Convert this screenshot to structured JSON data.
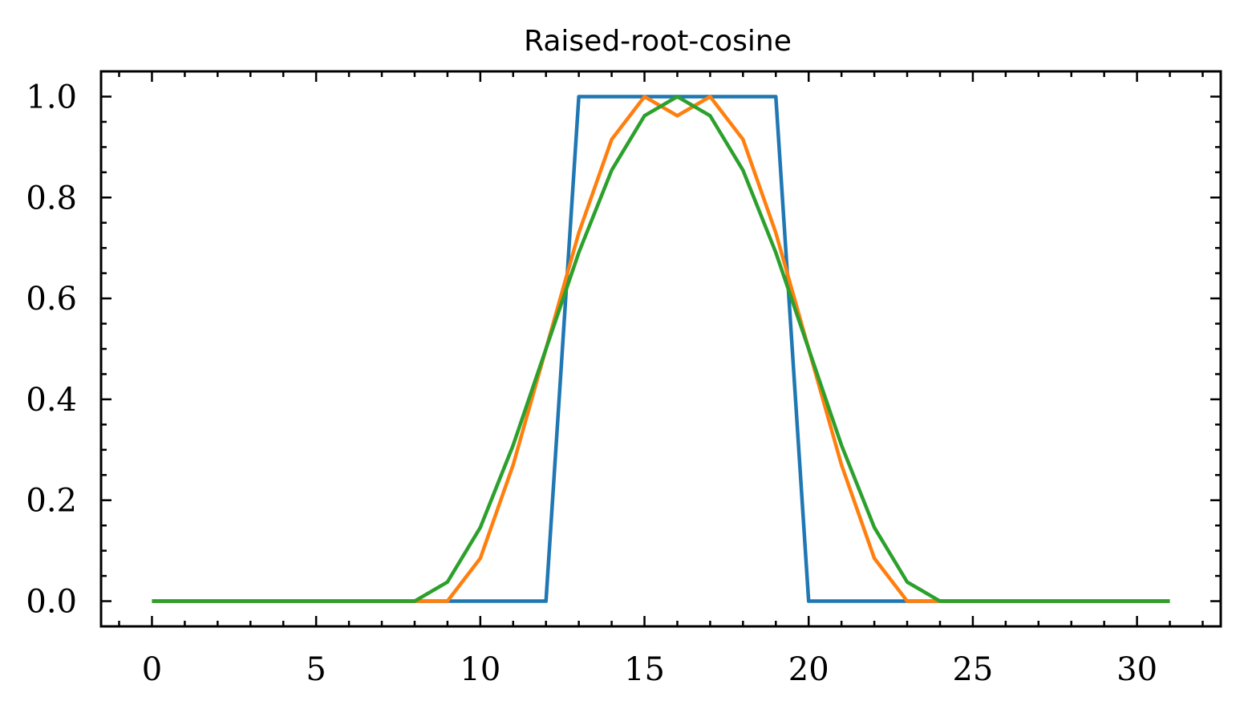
{
  "chart_data": {
    "type": "line",
    "title": "Raised-root-cosine",
    "xlabel": "",
    "ylabel": "",
    "xlim": [
      -1.55,
      32.55
    ],
    "ylim": [
      -0.05,
      1.05
    ],
    "xticks": [
      0,
      5,
      10,
      15,
      20,
      25,
      30
    ],
    "xtick_labels": [
      "0",
      "5",
      "10",
      "15",
      "20",
      "25",
      "30"
    ],
    "xminor_step": 1,
    "yticks": [
      0.0,
      0.2,
      0.4,
      0.6,
      0.8,
      1.0
    ],
    "ytick_labels": [
      "0.0",
      "0.2",
      "0.4",
      "0.6",
      "0.8",
      "1.0"
    ],
    "yminor_step": 0.05,
    "grid": false,
    "legend": "none",
    "x": [
      0,
      1,
      2,
      3,
      4,
      5,
      6,
      7,
      8,
      9,
      10,
      11,
      12,
      13,
      14,
      15,
      16,
      17,
      18,
      19,
      20,
      21,
      22,
      23,
      24,
      25,
      26,
      27,
      28,
      29,
      30,
      31
    ],
    "series": [
      {
        "color": "#1f77b4",
        "values": [
          0,
          0,
          0,
          0,
          0,
          0,
          0,
          0,
          0,
          0,
          0,
          0,
          0,
          1,
          1,
          1,
          1,
          1,
          1,
          1,
          0,
          0,
          0,
          0,
          0,
          0,
          0,
          0,
          0,
          0,
          0,
          0
        ]
      },
      {
        "color": "#ff7f0e",
        "values": [
          0,
          0,
          0,
          0,
          0,
          0,
          0,
          0,
          0,
          0,
          0.085,
          0.27,
          0.5,
          0.73,
          0.915,
          1,
          0.962,
          1,
          0.915,
          0.73,
          0.5,
          0.27,
          0.085,
          0,
          0,
          0,
          0,
          0,
          0,
          0,
          0,
          0
        ]
      },
      {
        "color": "#2ca02c",
        "values": [
          0,
          0,
          0,
          0,
          0,
          0,
          0,
          0,
          0,
          0.038,
          0.146,
          0.309,
          0.5,
          0.691,
          0.854,
          0.962,
          1,
          0.962,
          0.854,
          0.691,
          0.5,
          0.309,
          0.146,
          0.038,
          0,
          0,
          0,
          0,
          0,
          0,
          0,
          0
        ]
      }
    ]
  }
}
